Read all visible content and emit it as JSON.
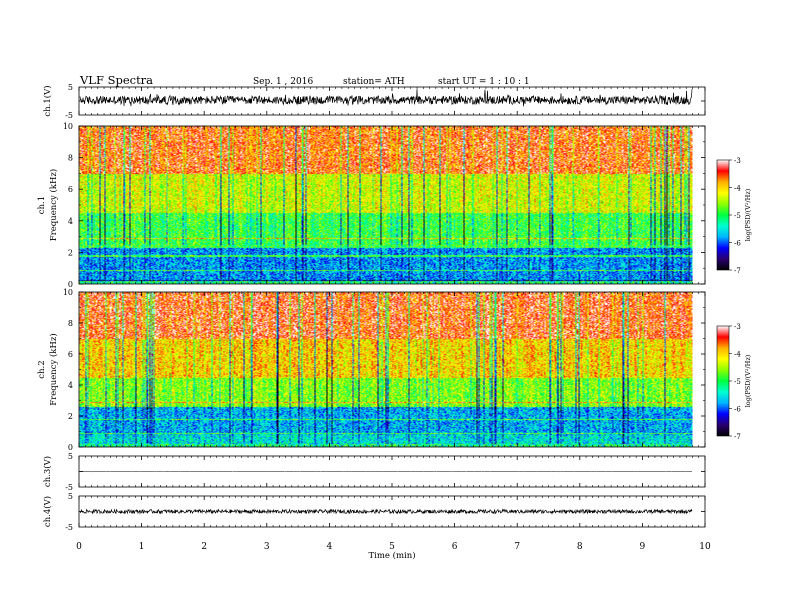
{
  "header": {
    "title": "VLF  Spectra",
    "date": "Sep. 1  , 2016",
    "station": "station= ATH",
    "start": "start  UT  =   1  : 10 : 1"
  },
  "colorbar_label": "log(PSD/(V²/Hz)",
  "chart_data": [
    {
      "type": "line",
      "panel": "ch1-waveform",
      "ylabel": "ch.1(V)",
      "yticks": [
        "5",
        "-5"
      ],
      "ylim": [
        -5,
        5
      ],
      "x_range": [
        0,
        9.8
      ],
      "baseline": 0.3,
      "noise_amplitude": 1.5
    },
    {
      "type": "heatmap",
      "panel": "ch1-spectrogram",
      "ylabel_lines": [
        "ch.1",
        "Frequency  (kHz)"
      ],
      "yticks": [
        "10",
        "8",
        "6",
        "4",
        "2",
        "0"
      ],
      "ylim": [
        0,
        10
      ],
      "x_range": [
        0,
        9.8
      ],
      "colorbar": {
        "label": "log(PSD/(V²/Hz)",
        "ticks": [
          "-3",
          "-4",
          "-5",
          "-6",
          "-7"
        ],
        "range": [
          -7,
          -3
        ]
      },
      "levels_by_freq_kHz": [
        {
          "band": [
            0,
            0.3
          ],
          "log_psd": -6.5
        },
        {
          "band": [
            0.3,
            2.3
          ],
          "log_psd": -5.8
        },
        {
          "band": [
            2.3,
            4.5
          ],
          "log_psd": -4.9
        },
        {
          "band": [
            4.5,
            7
          ],
          "log_psd": -4.3
        },
        {
          "band": [
            7,
            10
          ],
          "log_psd": -3.5
        }
      ]
    },
    {
      "type": "heatmap",
      "panel": "ch2-spectrogram",
      "ylabel_lines": [
        "ch.2",
        "Frequency  (kHz)"
      ],
      "yticks": [
        "10",
        "8",
        "6",
        "4",
        "2",
        "0"
      ],
      "ylim": [
        0,
        10
      ],
      "x_range": [
        0,
        9.8
      ],
      "colorbar": {
        "label": "log(PSD/(V²/Hz)",
        "ticks": [
          "-3",
          "-4",
          "-5",
          "-6",
          "-7"
        ],
        "range": [
          -7,
          -3
        ]
      },
      "levels_by_freq_kHz": [
        {
          "band": [
            0,
            0.8
          ],
          "log_psd": -5.5
        },
        {
          "band": [
            0.8,
            2.6
          ],
          "log_psd": -5.7
        },
        {
          "band": [
            2.6,
            4.5
          ],
          "log_psd": -4.6
        },
        {
          "band": [
            4.5,
            7
          ],
          "log_psd": -4.0
        },
        {
          "band": [
            7,
            10
          ],
          "log_psd": -3.4
        }
      ]
    },
    {
      "type": "line",
      "panel": "ch3-waveform",
      "ylabel": "ch.3(V)",
      "yticks": [
        "5",
        "-5"
      ],
      "ylim": [
        -5,
        5
      ],
      "x_range": [
        0,
        9.8
      ],
      "baseline": 0,
      "noise_amplitude": 0.1
    },
    {
      "type": "line",
      "panel": "ch4-waveform",
      "ylabel": "ch.4(V)",
      "yticks": [
        "5",
        "-5"
      ],
      "ylim": [
        -5,
        5
      ],
      "x_range": [
        0,
        9.8
      ],
      "baseline": 0,
      "noise_amplitude": 0.6
    }
  ],
  "x_axis": {
    "label": "Time  (min)",
    "ticks": [
      "0",
      "1",
      "2",
      "3",
      "4",
      "5",
      "6",
      "7",
      "8",
      "9",
      "10"
    ],
    "xlim": [
      0,
      10
    ]
  },
  "colors": {
    "colormap": [
      "#000000",
      "#2a006e",
      "#0000ff",
      "#00b4ff",
      "#00ffd0",
      "#00ff40",
      "#8cff00",
      "#ffff00",
      "#ffb000",
      "#ff0000",
      "#ffffff"
    ],
    "line": "#000000"
  }
}
